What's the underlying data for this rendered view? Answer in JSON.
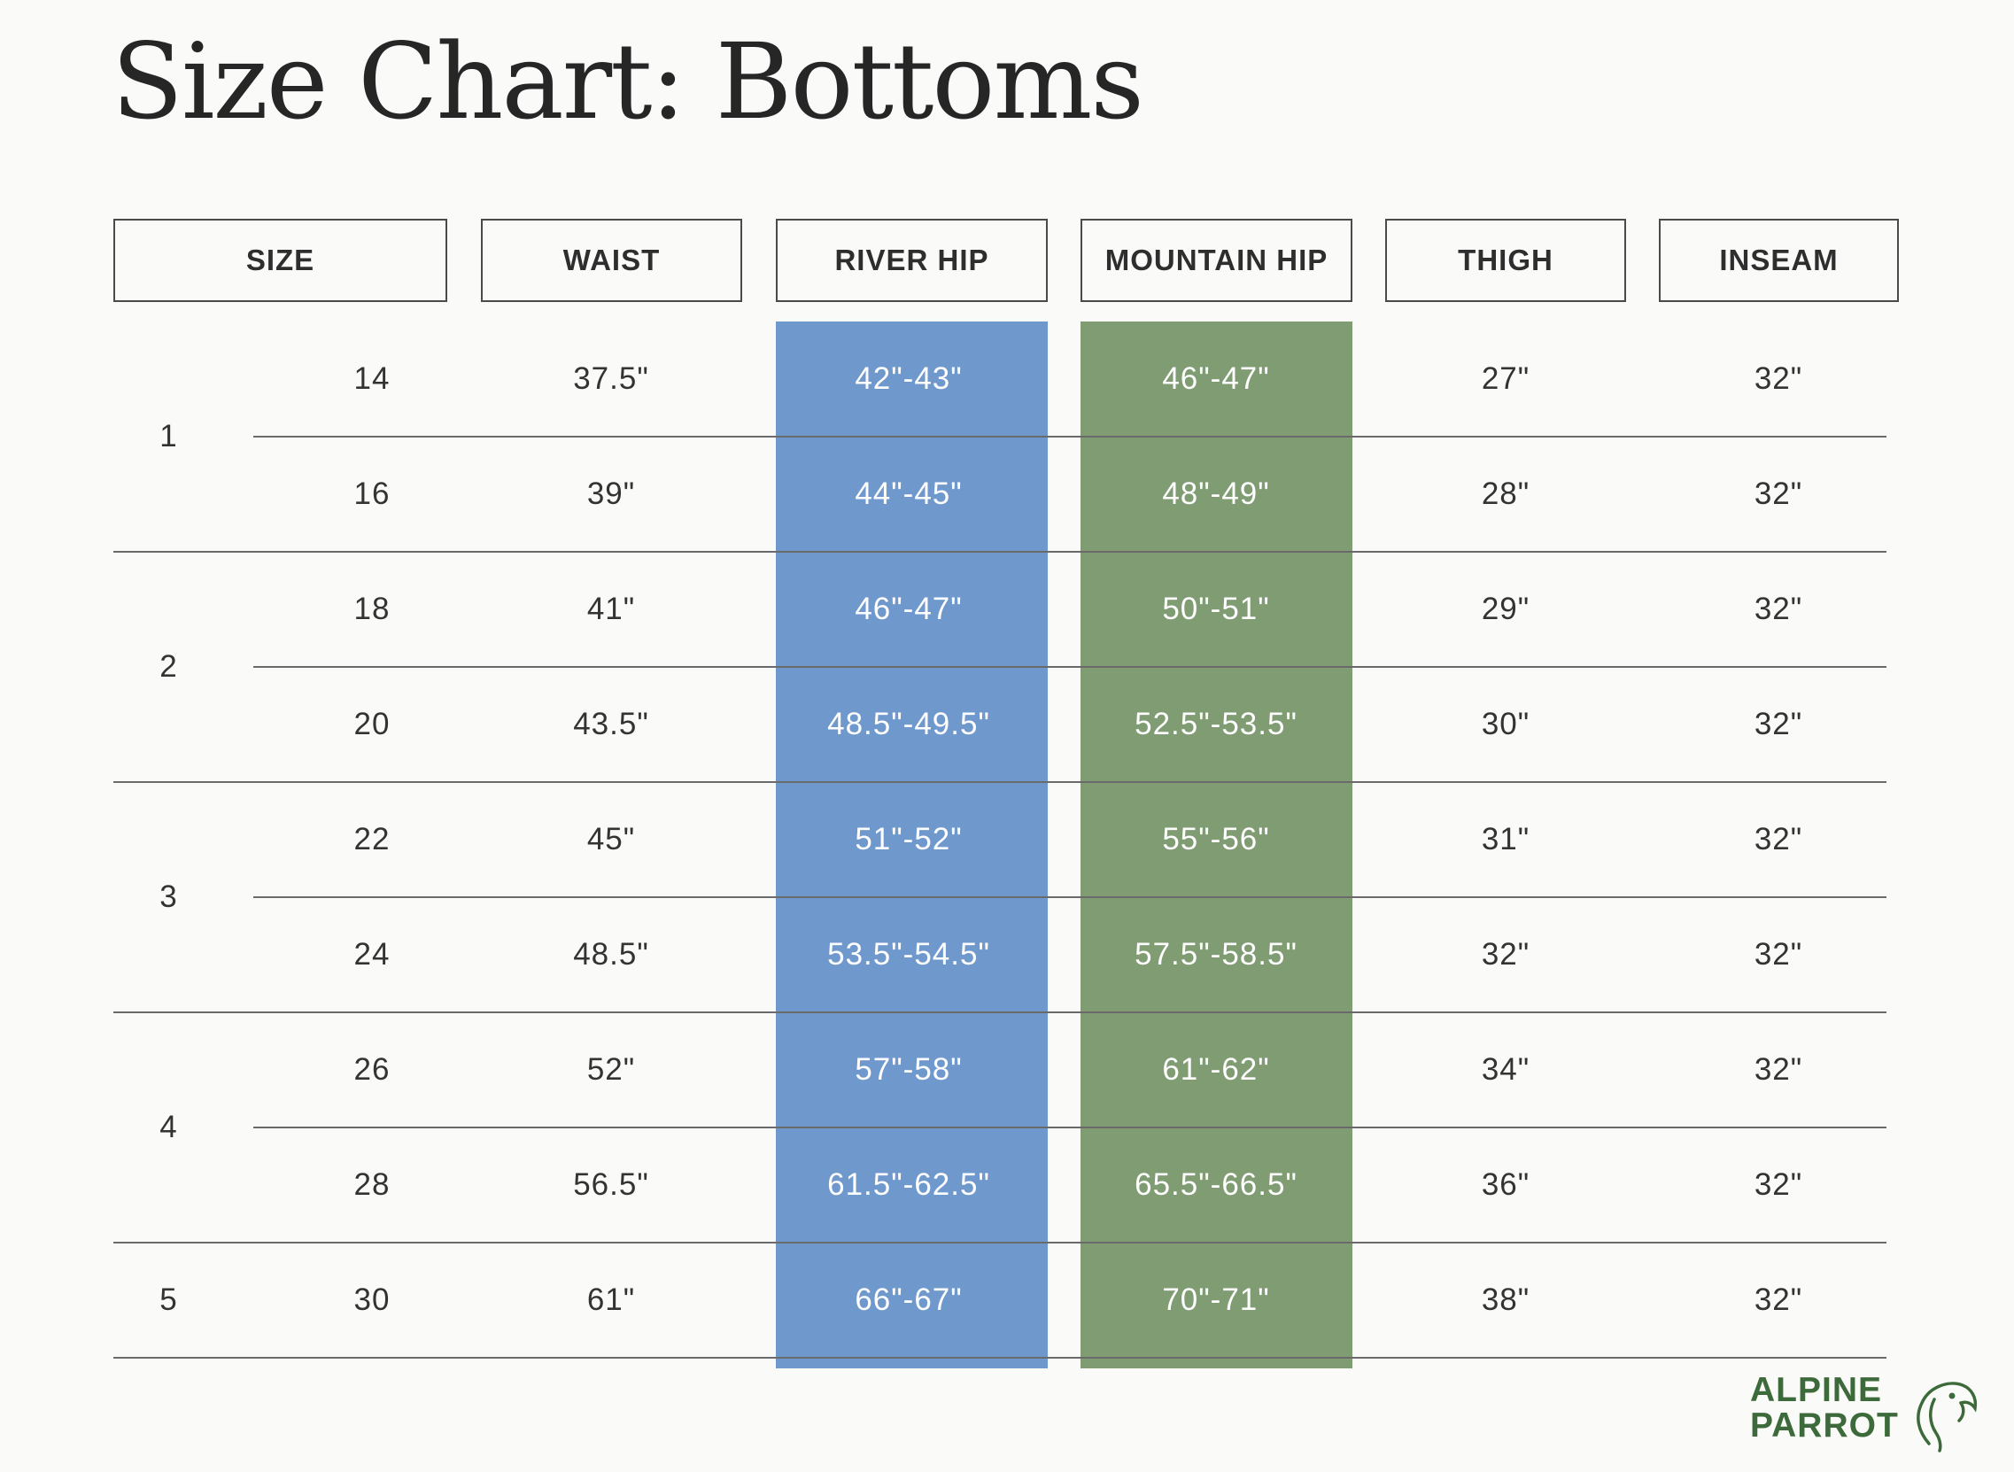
{
  "title": "Size Chart: Bottoms",
  "columns": [
    "SIZE",
    "WAIST",
    "RIVER HIP",
    "MOUNTAIN HIP",
    "THIGH",
    "INSEAM"
  ],
  "groups": [
    "1",
    "2",
    "3",
    "4",
    "5"
  ],
  "rows": [
    {
      "size": "14",
      "waist": "37.5\"",
      "river_hip": "42\"-43\"",
      "mountain_hip": "46\"-47\"",
      "thigh": "27\"",
      "inseam": "32\""
    },
    {
      "size": "16",
      "waist": "39\"",
      "river_hip": "44\"-45\"",
      "mountain_hip": "48\"-49\"",
      "thigh": "28\"",
      "inseam": "32\""
    },
    {
      "size": "18",
      "waist": "41\"",
      "river_hip": "46\"-47\"",
      "mountain_hip": "50\"-51\"",
      "thigh": "29\"",
      "inseam": "32\""
    },
    {
      "size": "20",
      "waist": "43.5\"",
      "river_hip": "48.5\"-49.5\"",
      "mountain_hip": "52.5\"-53.5\"",
      "thigh": "30\"",
      "inseam": "32\""
    },
    {
      "size": "22",
      "waist": "45\"",
      "river_hip": "51\"-52\"",
      "mountain_hip": "55\"-56\"",
      "thigh": "31\"",
      "inseam": "32\""
    },
    {
      "size": "24",
      "waist": "48.5\"",
      "river_hip": "53.5\"-54.5\"",
      "mountain_hip": "57.5\"-58.5\"",
      "thigh": "32\"",
      "inseam": "32\""
    },
    {
      "size": "26",
      "waist": "52\"",
      "river_hip": "57\"-58\"",
      "mountain_hip": "61\"-62\"",
      "thigh": "34\"",
      "inseam": "32\""
    },
    {
      "size": "28",
      "waist": "56.5\"",
      "river_hip": "61.5\"-62.5\"",
      "mountain_hip": "65.5\"-66.5\"",
      "thigh": "36\"",
      "inseam": "32\""
    },
    {
      "size": "30",
      "waist": "61\"",
      "river_hip": "66\"-67\"",
      "mountain_hip": "70\"-71\"",
      "thigh": "38\"",
      "inseam": "32\""
    }
  ],
  "logo": {
    "line1": "ALPINE",
    "line2": "PARROT",
    "icon": "parrot-icon"
  },
  "colors": {
    "river_hip": "#6f99cd",
    "mountain_hip": "#7f9c72",
    "brand": "#3d6a3a",
    "background": "#fafaf8"
  }
}
